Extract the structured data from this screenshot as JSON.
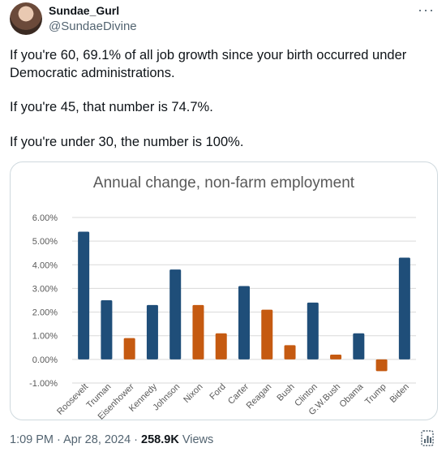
{
  "author": {
    "display_name": "Sundae_Gurl",
    "handle": "@SundaeDivine"
  },
  "more_label": "···",
  "tweet_text": {
    "line1": "If you're 60, 69.1% of all job growth since your birth occurred under Democratic administrations.",
    "line2": "If you're 45, that number is 74.7%.",
    "line3": "If you're under 30, the number is 100%."
  },
  "footer": {
    "time": "1:09 PM",
    "separator1": " · ",
    "date": "Apr 28, 2024",
    "separator2": " · ",
    "views_count": "258.9K",
    "views_label": " Views"
  },
  "colors": {
    "democratic": "#1f4e79",
    "republican": "#c55a11"
  },
  "chart_data": {
    "type": "bar",
    "title": "Annual change, non-farm employment",
    "categories": [
      "Roosevelt",
      "Truman",
      "Eisenhower",
      "Kennedy",
      "Johnson",
      "Nixon",
      "Ford",
      "Carter",
      "Reagan",
      "Bush",
      "Clinton",
      "G.W.Bush",
      "Obama",
      "Trump",
      "Biden"
    ],
    "values": [
      5.4,
      2.5,
      0.9,
      2.3,
      3.8,
      2.3,
      1.1,
      3.1,
      2.1,
      0.6,
      2.4,
      0.2,
      1.1,
      -0.5,
      4.3
    ],
    "party": [
      "D",
      "D",
      "R",
      "D",
      "D",
      "R",
      "R",
      "D",
      "R",
      "R",
      "D",
      "R",
      "D",
      "R",
      "D"
    ],
    "ylim": [
      -1.0,
      6.0
    ],
    "yticks": [
      "-1.00%",
      "0.00%",
      "1.00%",
      "2.00%",
      "3.00%",
      "4.00%",
      "5.00%",
      "6.00%"
    ],
    "grid": true
  }
}
